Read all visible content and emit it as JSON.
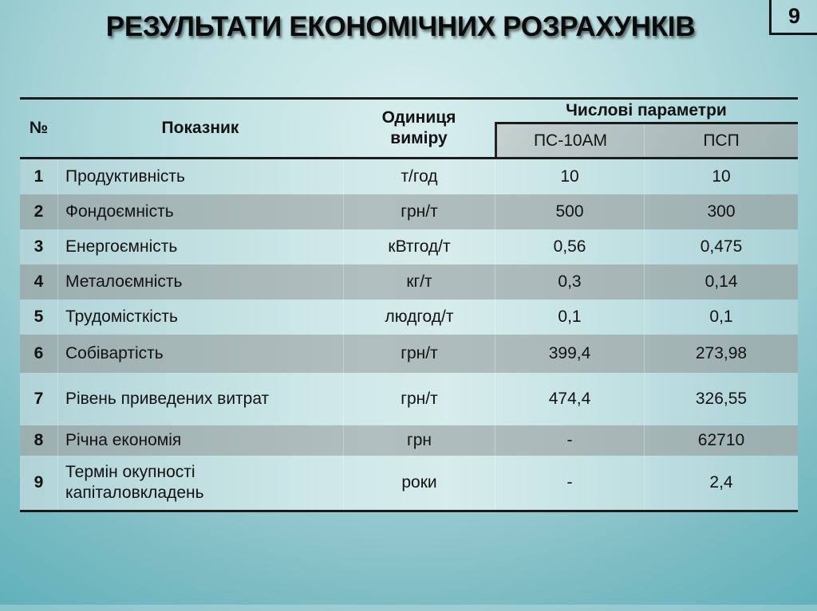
{
  "slide": {
    "title": "РЕЗУЛЬТАТИ ЕКОНОМІЧНИХ РОЗРАХУНКІВ",
    "page_number": "9"
  },
  "table": {
    "headers": {
      "num": "№",
      "indicator": "Показник",
      "unit": "Одиниця\nвиміру",
      "params_group": "Числові параметри",
      "param_cols": [
        "ПС-10АМ",
        "ПСП"
      ]
    },
    "rows": [
      {
        "num": "1",
        "indicator": "Продуктивність",
        "unit": "т/год",
        "ps10am": "10",
        "psp": "10"
      },
      {
        "num": "2",
        "indicator": "Фондоємність",
        "unit": "грн/т",
        "ps10am": "500",
        "psp": "300"
      },
      {
        "num": "3",
        "indicator": "Енергоємність",
        "unit": "кВтгод/т",
        "ps10am": "0,56",
        "psp": "0,475"
      },
      {
        "num": "4",
        "indicator": "Металоємність",
        "unit": "кг/т",
        "ps10am": "0,3",
        "psp": "0,14"
      },
      {
        "num": "5",
        "indicator": "Трудомісткість",
        "unit": "людгод/т",
        "ps10am": "0,1",
        "psp": "0,1"
      },
      {
        "num": "6",
        "indicator": "Собівартість",
        "unit": "грн/т",
        "ps10am": "399,4",
        "psp": "273,98"
      },
      {
        "num": "7",
        "indicator": "Рівень приведених витрат",
        "unit": "грн/т",
        "ps10am": "474,4",
        "psp": "326,55"
      },
      {
        "num": "8",
        "indicator": "Річна економія",
        "unit": "грн",
        "ps10am": "-",
        "psp": "62710"
      },
      {
        "num": "9",
        "indicator": "Термін окупності\nкапіталовкладень",
        "unit": "роки",
        "ps10am": "-",
        "psp": "2,4"
      }
    ]
  },
  "colors": {
    "background_teal": "#63b2bb",
    "background_light": "#d9eeee",
    "light_row": "#cde7e8",
    "gray_row": "#aab9b9",
    "subheader_gray": "#b2c0bf",
    "line": "#1b1b1b",
    "text": "#121212"
  }
}
